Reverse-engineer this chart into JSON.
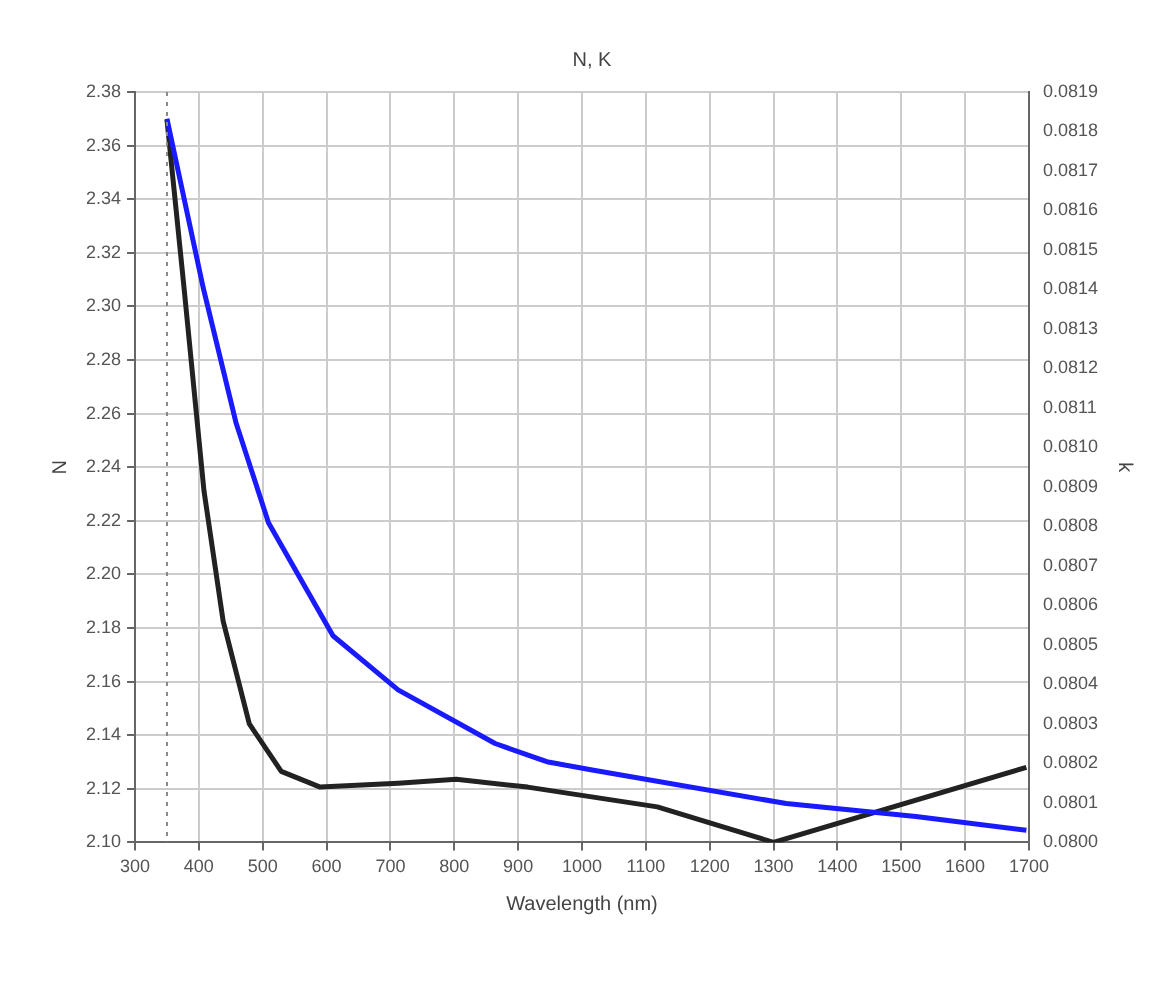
{
  "chart_data": {
    "type": "line",
    "title": "N, K",
    "xlabel": "Wavelength (nm)",
    "ylabel": "N",
    "y2label": "k",
    "xlim": [
      300,
      1700
    ],
    "xticks": [
      300,
      400,
      500,
      600,
      700,
      800,
      900,
      1000,
      1100,
      1200,
      1300,
      1400,
      1500,
      1600,
      1700
    ],
    "ylim": [
      2.1,
      2.38
    ],
    "yticks": [
      {
        "value": 2.1,
        "label": "2.10"
      },
      {
        "value": 2.12,
        "label": "2.12"
      },
      {
        "value": 2.14,
        "label": "2.14"
      },
      {
        "value": 2.16,
        "label": "2.16"
      },
      {
        "value": 2.18,
        "label": "2.18"
      },
      {
        "value": 2.2,
        "label": "2.20"
      },
      {
        "value": 2.22,
        "label": "2.22"
      },
      {
        "value": 2.24,
        "label": "2.24"
      },
      {
        "value": 2.26,
        "label": "2.26"
      },
      {
        "value": 2.28,
        "label": "2.28"
      },
      {
        "value": 2.3,
        "label": "2.30"
      },
      {
        "value": 2.32,
        "label": "2.32"
      },
      {
        "value": 2.34,
        "label": "2.34"
      },
      {
        "value": 2.36,
        "label": "2.36"
      },
      {
        "value": 2.38,
        "label": "2.38"
      }
    ],
    "y2lim": [
      0.08,
      0.0819
    ],
    "y2ticks": [
      {
        "value": 0.08,
        "label": "0.0800"
      },
      {
        "value": 0.0801,
        "label": "0.0801"
      },
      {
        "value": 0.0802,
        "label": "0.0802"
      },
      {
        "value": 0.0803,
        "label": "0.0803"
      },
      {
        "value": 0.0804,
        "label": "0.0804"
      },
      {
        "value": 0.0805,
        "label": "0.0805"
      },
      {
        "value": 0.0806,
        "label": "0.0806"
      },
      {
        "value": 0.0807,
        "label": "0.0807"
      },
      {
        "value": 0.0808,
        "label": "0.0808"
      },
      {
        "value": 0.0809,
        "label": "0.0809"
      },
      {
        "value": 0.081,
        "label": "0.0810"
      },
      {
        "value": 0.0811,
        "label": "0.0811"
      },
      {
        "value": 0.0812,
        "label": "0.0812"
      },
      {
        "value": 0.0813,
        "label": "0.0813"
      },
      {
        "value": 0.0814,
        "label": "0.0814"
      },
      {
        "value": 0.0815,
        "label": "0.0815"
      },
      {
        "value": 0.0816,
        "label": "0.0816"
      },
      {
        "value": 0.0817,
        "label": "0.0817"
      },
      {
        "value": 0.0818,
        "label": "0.0818"
      },
      {
        "value": 0.0819,
        "label": "0.0819"
      }
    ],
    "series": [
      {
        "color": "#1a1aff",
        "x": [
          350,
          407,
          458,
          509,
          610,
          712,
          864,
          945,
          1016,
          1320,
          1523,
          1696
        ],
        "values": [
          2.37,
          2.3067,
          2.2567,
          2.2193,
          2.1771,
          2.1569,
          2.1369,
          2.1301,
          2.127,
          2.1145,
          2.1097,
          2.1045
        ]
      },
      {
        "color": "#222222",
        "axis": "y2",
        "x": [
          350,
          377,
          408,
          438,
          479,
          529,
          590,
          712,
          803,
          915,
          1118,
          1300,
          1696
        ],
        "values": [
          0.08183,
          0.0814,
          0.08089,
          0.08056,
          0.0803,
          0.08018,
          0.08014,
          0.08015,
          0.08016,
          0.08014,
          0.08009,
          0.08,
          0.08019
        ]
      }
    ],
    "ref_lines": [
      {
        "axis": "x",
        "value": 350,
        "line_style": "dotted",
        "color": "#888888"
      }
    ],
    "grid": true,
    "legend": false,
    "marker": "none",
    "line_style": "solid"
  }
}
